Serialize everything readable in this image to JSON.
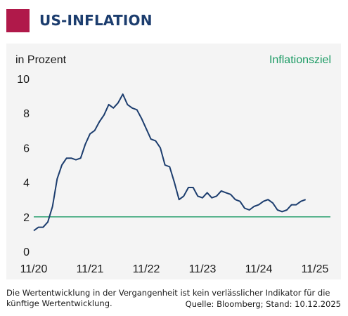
{
  "header": {
    "title": "US-INFLATION",
    "accent_color": "#b0194a",
    "title_color": "#1c3d6e"
  },
  "footer": {
    "note": "Die Wertentwicklung in der Vergangenheit ist kein verlässlicher Indikator für die künftige Wertentwicklung.",
    "source": "Quelle: Bloomberg; Stand: 10.12.2025"
  },
  "chart_data": {
    "type": "line",
    "unit_label": "in Prozent",
    "ylim": [
      0,
      10
    ],
    "yticks": [
      0,
      2,
      4,
      6,
      8,
      10
    ],
    "xticks": [
      "11/20",
      "11/21",
      "11/22",
      "11/23",
      "11/24",
      "11/25"
    ],
    "x_start": "11/20",
    "grid": false,
    "series": [
      {
        "color": "#1c3d6e",
        "values": [
          1.2,
          1.4,
          1.4,
          1.7,
          2.6,
          4.2,
          5.0,
          5.4,
          5.4,
          5.3,
          5.4,
          6.2,
          6.8,
          7.0,
          7.5,
          7.9,
          8.5,
          8.3,
          8.6,
          9.1,
          8.5,
          8.3,
          8.2,
          7.7,
          7.1,
          6.5,
          6.4,
          6.0,
          5.0,
          4.9,
          4.0,
          3.0,
          3.2,
          3.7,
          3.7,
          3.2,
          3.1,
          3.4,
          3.1,
          3.2,
          3.5,
          3.4,
          3.3,
          3.0,
          2.9,
          2.5,
          2.4,
          2.6,
          2.7,
          2.9,
          3.0,
          2.8,
          2.4,
          2.3,
          2.4,
          2.7,
          2.7,
          2.9,
          3.0
        ]
      }
    ],
    "reference_line": {
      "name": "Inflationsziel",
      "value": 2,
      "color": "#1a9a63"
    }
  }
}
